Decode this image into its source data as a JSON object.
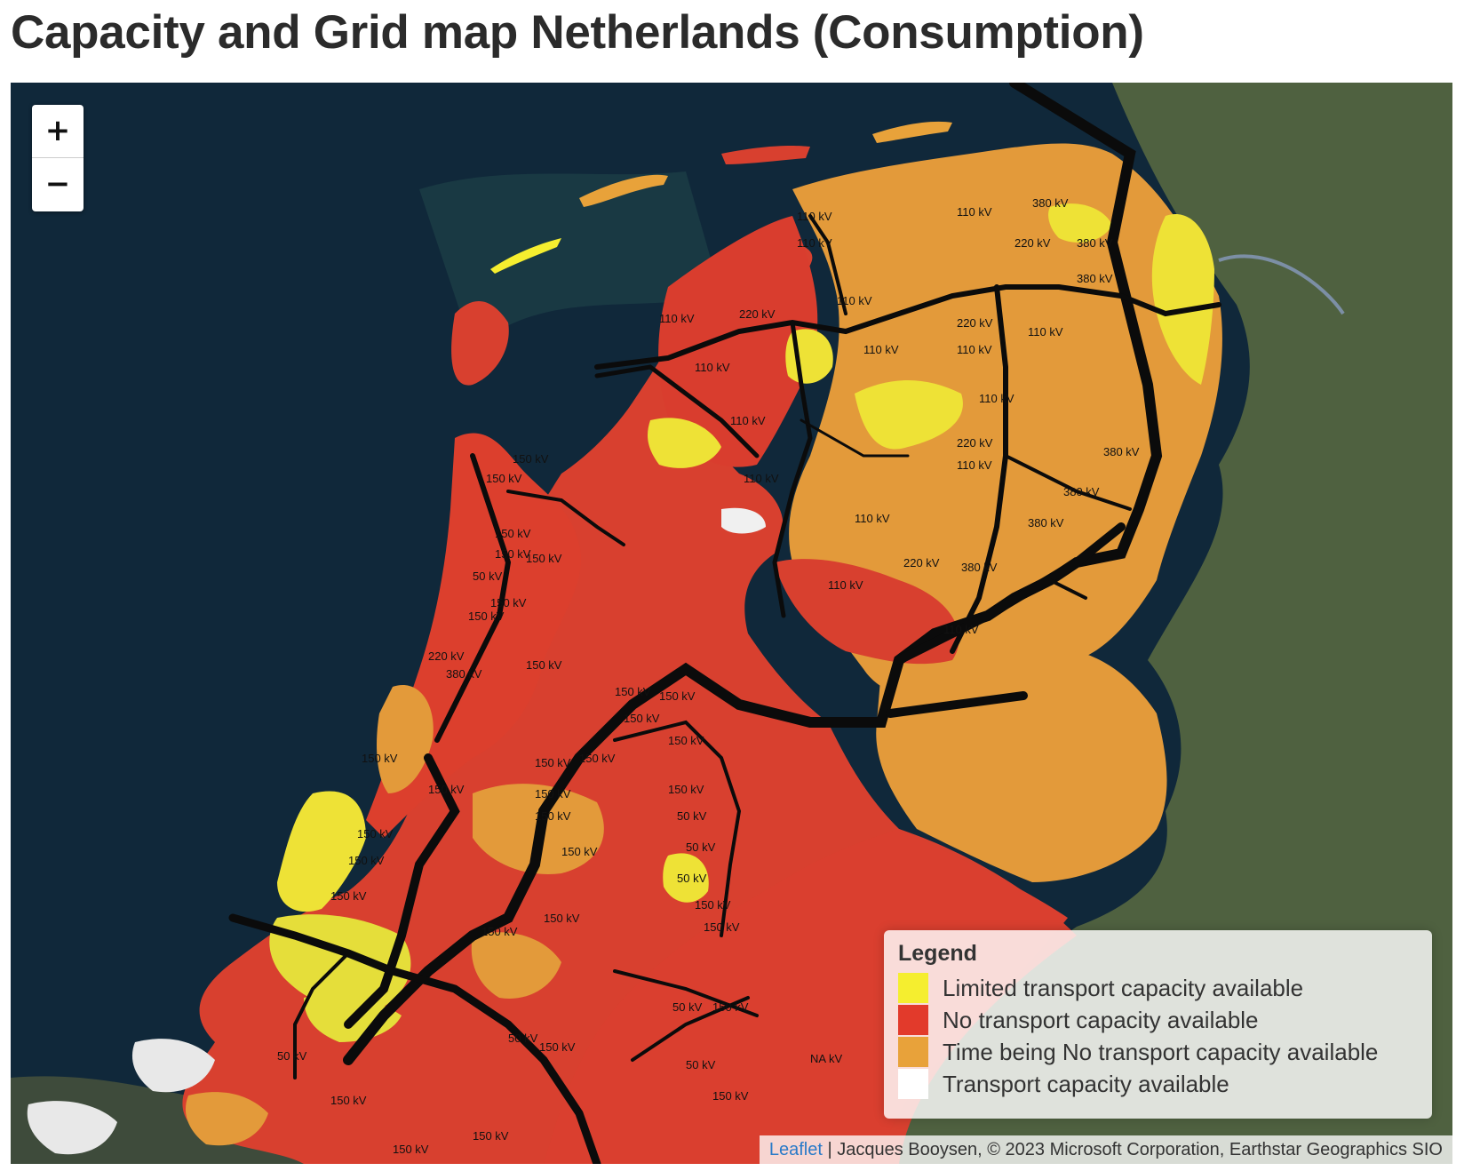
{
  "page": {
    "title": "Capacity and Grid map Netherlands (Consumption)"
  },
  "map": {
    "zoom_in_label": "+",
    "zoom_out_label": "−",
    "legend": {
      "title": "Legend",
      "items": [
        {
          "label": "Limited transport capacity available",
          "color": "#f5ee2f"
        },
        {
          "label": "No transport capacity available",
          "color": "#e23a2b"
        },
        {
          "label": "Time being No transport capacity available",
          "color": "#e8a23a"
        },
        {
          "label": "Transport capacity available",
          "color": "#ffffff"
        }
      ]
    },
    "attribution": {
      "link_text": "Leaflet",
      "separator": "|",
      "text": "Jacques Booysen, © 2023 Microsoft Corporation, Earthstar Geographics SIO"
    },
    "voltage_labels": [
      "110 kV",
      "150 kV",
      "220 kV",
      "380 kV",
      "50 kV",
      "NA kV"
    ],
    "colors": {
      "sea": "#0f2634",
      "land": "#4d5f3d",
      "limited": "#f5ee2f",
      "none": "#e23a2b",
      "time_being": "#e8a23a",
      "available": "#ffffff",
      "grid_lines": "#0b0b0b"
    }
  }
}
